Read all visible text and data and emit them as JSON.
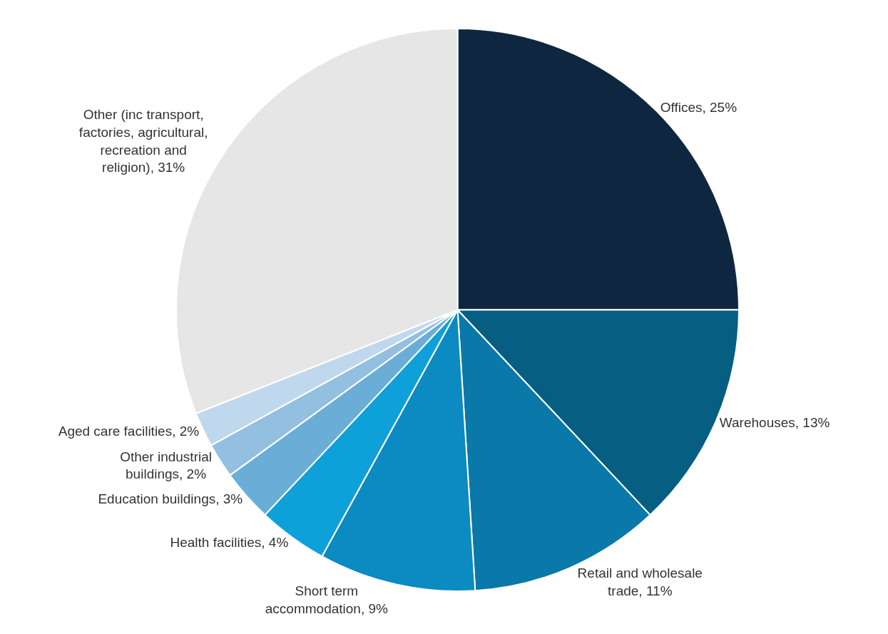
{
  "chart_data": {
    "type": "pie",
    "categories": [
      "Offices",
      "Warehouses",
      "Retail and wholesale trade",
      "Short term accommodation",
      "Health facilities",
      "Education buildings",
      "Other industrial buildings",
      "Aged care facilities",
      "Other (inc transport, factories, agricultural, recreation and religion)"
    ],
    "values": [
      25,
      13,
      11,
      9,
      4,
      3,
      2,
      2,
      31
    ],
    "value_labels": [
      "25%",
      "13%",
      "11%",
      "9%",
      "4%",
      "3%",
      "2%",
      "2%",
      "31%"
    ],
    "colors": [
      "#0f2640",
      "#065e82",
      "#0a78a8",
      "#0c8ac2",
      "#0ea0d8",
      "#6aaed8",
      "#93bfe0",
      "#c0d8ee",
      "#e6e6e6"
    ],
    "legend": false
  }
}
